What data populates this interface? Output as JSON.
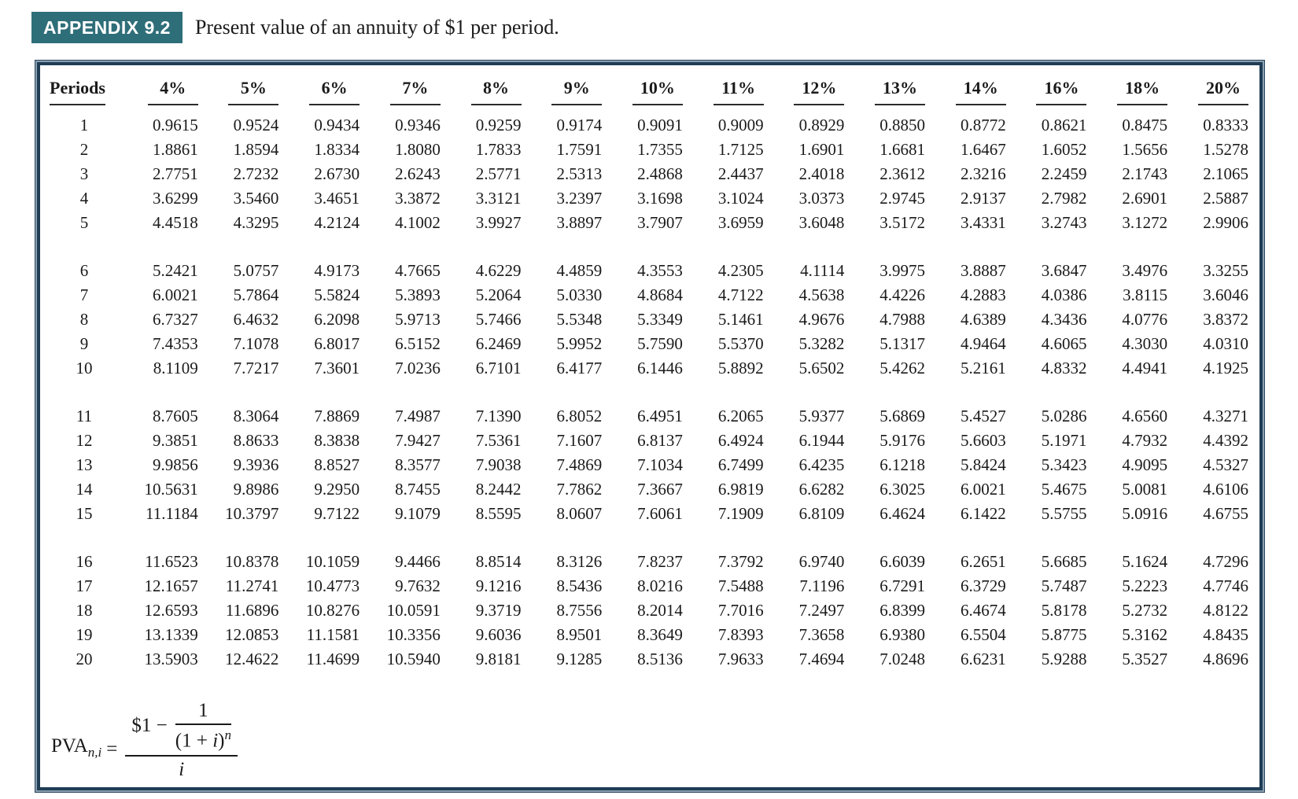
{
  "header": {
    "badge": "APPENDIX 9.2",
    "caption": "Present value of an annuity of $1 per period."
  },
  "colors": {
    "badge_bg": "#2e6e79",
    "badge_text": "#ffffff",
    "table_border": "#1f3d55",
    "text": "#1a1a1a"
  },
  "table": {
    "columns": [
      "Periods",
      "4%",
      "5%",
      "6%",
      "7%",
      "8%",
      "9%",
      "10%",
      "11%",
      "12%",
      "13%",
      "14%",
      "16%",
      "18%",
      "20%"
    ],
    "row_groups": [
      [
        {
          "period": "1",
          "values": [
            "0.9615",
            "0.9524",
            "0.9434",
            "0.9346",
            "0.9259",
            "0.9174",
            "0.9091",
            "0.9009",
            "0.8929",
            "0.8850",
            "0.8772",
            "0.8621",
            "0.8475",
            "0.8333"
          ]
        },
        {
          "period": "2",
          "values": [
            "1.8861",
            "1.8594",
            "1.8334",
            "1.8080",
            "1.7833",
            "1.7591",
            "1.7355",
            "1.7125",
            "1.6901",
            "1.6681",
            "1.6467",
            "1.6052",
            "1.5656",
            "1.5278"
          ]
        },
        {
          "period": "3",
          "values": [
            "2.7751",
            "2.7232",
            "2.6730",
            "2.6243",
            "2.5771",
            "2.5313",
            "2.4868",
            "2.4437",
            "2.4018",
            "2.3612",
            "2.3216",
            "2.2459",
            "2.1743",
            "2.1065"
          ]
        },
        {
          "period": "4",
          "values": [
            "3.6299",
            "3.5460",
            "3.4651",
            "3.3872",
            "3.3121",
            "3.2397",
            "3.1698",
            "3.1024",
            "3.0373",
            "2.9745",
            "2.9137",
            "2.7982",
            "2.6901",
            "2.5887"
          ]
        },
        {
          "period": "5",
          "values": [
            "4.4518",
            "4.3295",
            "4.2124",
            "4.1002",
            "3.9927",
            "3.8897",
            "3.7907",
            "3.6959",
            "3.6048",
            "3.5172",
            "3.4331",
            "3.2743",
            "3.1272",
            "2.9906"
          ]
        }
      ],
      [
        {
          "period": "6",
          "values": [
            "5.2421",
            "5.0757",
            "4.9173",
            "4.7665",
            "4.6229",
            "4.4859",
            "4.3553",
            "4.2305",
            "4.1114",
            "3.9975",
            "3.8887",
            "3.6847",
            "3.4976",
            "3.3255"
          ]
        },
        {
          "period": "7",
          "values": [
            "6.0021",
            "5.7864",
            "5.5824",
            "5.3893",
            "5.2064",
            "5.0330",
            "4.8684",
            "4.7122",
            "4.5638",
            "4.4226",
            "4.2883",
            "4.0386",
            "3.8115",
            "3.6046"
          ]
        },
        {
          "period": "8",
          "values": [
            "6.7327",
            "6.4632",
            "6.2098",
            "5.9713",
            "5.7466",
            "5.5348",
            "5.3349",
            "5.1461",
            "4.9676",
            "4.7988",
            "4.6389",
            "4.3436",
            "4.0776",
            "3.8372"
          ]
        },
        {
          "period": "9",
          "values": [
            "7.4353",
            "7.1078",
            "6.8017",
            "6.5152",
            "6.2469",
            "5.9952",
            "5.7590",
            "5.5370",
            "5.3282",
            "5.1317",
            "4.9464",
            "4.6065",
            "4.3030",
            "4.0310"
          ]
        },
        {
          "period": "10",
          "values": [
            "8.1109",
            "7.7217",
            "7.3601",
            "7.0236",
            "6.7101",
            "6.4177",
            "6.1446",
            "5.8892",
            "5.6502",
            "5.4262",
            "5.2161",
            "4.8332",
            "4.4941",
            "4.1925"
          ]
        }
      ],
      [
        {
          "period": "11",
          "values": [
            "8.7605",
            "8.3064",
            "7.8869",
            "7.4987",
            "7.1390",
            "6.8052",
            "6.4951",
            "6.2065",
            "5.9377",
            "5.6869",
            "5.4527",
            "5.0286",
            "4.6560",
            "4.3271"
          ]
        },
        {
          "period": "12",
          "values": [
            "9.3851",
            "8.8633",
            "8.3838",
            "7.9427",
            "7.5361",
            "7.1607",
            "6.8137",
            "6.4924",
            "6.1944",
            "5.9176",
            "5.6603",
            "5.1971",
            "4.7932",
            "4.4392"
          ]
        },
        {
          "period": "13",
          "values": [
            "9.9856",
            "9.3936",
            "8.8527",
            "8.3577",
            "7.9038",
            "7.4869",
            "7.1034",
            "6.7499",
            "6.4235",
            "6.1218",
            "5.8424",
            "5.3423",
            "4.9095",
            "4.5327"
          ]
        },
        {
          "period": "14",
          "values": [
            "10.5631",
            "9.8986",
            "9.2950",
            "8.7455",
            "8.2442",
            "7.7862",
            "7.3667",
            "6.9819",
            "6.6282",
            "6.3025",
            "6.0021",
            "5.4675",
            "5.0081",
            "4.6106"
          ]
        },
        {
          "period": "15",
          "values": [
            "11.1184",
            "10.3797",
            "9.7122",
            "9.1079",
            "8.5595",
            "8.0607",
            "7.6061",
            "7.1909",
            "6.8109",
            "6.4624",
            "6.1422",
            "5.5755",
            "5.0916",
            "4.6755"
          ]
        }
      ],
      [
        {
          "period": "16",
          "values": [
            "11.6523",
            "10.8378",
            "10.1059",
            "9.4466",
            "8.8514",
            "8.3126",
            "7.8237",
            "7.3792",
            "6.9740",
            "6.6039",
            "6.2651",
            "5.6685",
            "5.1624",
            "4.7296"
          ]
        },
        {
          "period": "17",
          "values": [
            "12.1657",
            "11.2741",
            "10.4773",
            "9.7632",
            "9.1216",
            "8.5436",
            "8.0216",
            "7.5488",
            "7.1196",
            "6.7291",
            "6.3729",
            "5.7487",
            "5.2223",
            "4.7746"
          ]
        },
        {
          "period": "18",
          "values": [
            "12.6593",
            "11.6896",
            "10.8276",
            "10.0591",
            "9.3719",
            "8.7556",
            "8.2014",
            "7.7016",
            "7.2497",
            "6.8399",
            "6.4674",
            "5.8178",
            "5.2732",
            "4.8122"
          ]
        },
        {
          "period": "19",
          "values": [
            "13.1339",
            "12.0853",
            "11.1581",
            "10.3356",
            "9.6036",
            "8.9501",
            "8.3649",
            "7.8393",
            "7.3658",
            "6.9380",
            "6.5504",
            "5.8775",
            "5.3162",
            "4.8435"
          ]
        },
        {
          "period": "20",
          "values": [
            "13.5903",
            "12.4622",
            "11.4699",
            "10.5940",
            "9.8181",
            "9.1285",
            "8.5136",
            "7.9633",
            "7.4694",
            "7.0248",
            "6.6231",
            "5.9288",
            "5.3527",
            "4.8696"
          ]
        }
      ]
    ]
  },
  "formula": {
    "lhs_base": "PVA",
    "lhs_sub": "n,i",
    "equals": "=",
    "outer_num_prefix": "$1 −",
    "inner_num": "1",
    "inner_den_open": "(1 + ",
    "inner_den_var": "i",
    "inner_den_close": ")",
    "inner_den_exp": "n",
    "outer_den": "i"
  }
}
